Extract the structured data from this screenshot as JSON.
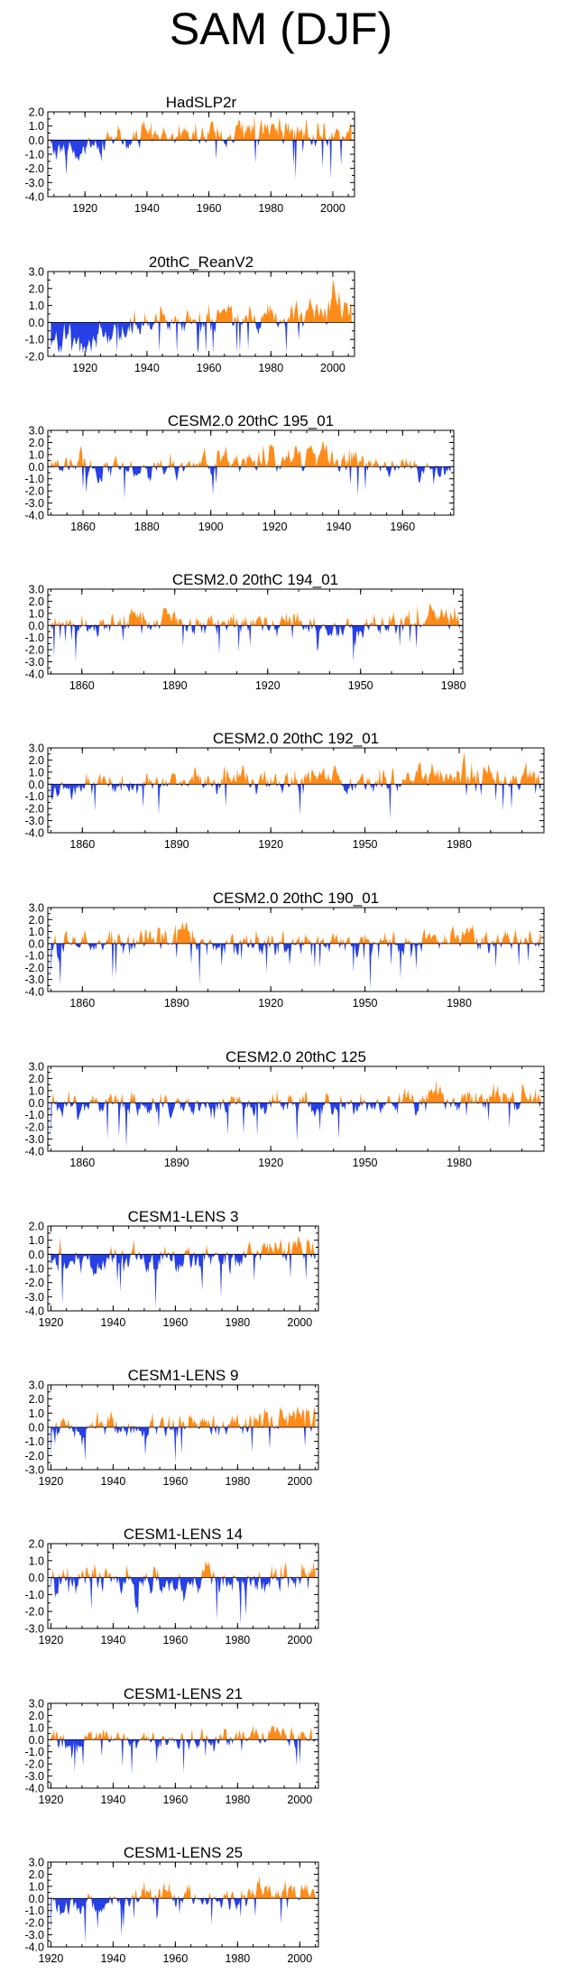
{
  "title": "SAM (DJF)",
  "colors": {
    "positive": "#ff8c1a",
    "negative": "#2640e6",
    "axis": "#000000"
  },
  "chart_data": [
    {
      "type": "area",
      "title": "HadSLP2r",
      "xlim": [
        1908,
        2007
      ],
      "ylim": [
        -4,
        2
      ],
      "yticks": [
        2.0,
        1.0,
        0.0,
        -1.0,
        -2.0,
        -3.0,
        -4.0
      ],
      "ytick_labels": [
        "2.0",
        "1.0",
        "0.0",
        "-1.0",
        "-2.0",
        "-3.0",
        "-4.0"
      ],
      "xticks": [
        1920,
        1940,
        1960,
        1980,
        2000
      ],
      "xtick_labels": [
        "1920",
        "1940",
        "1960",
        "1980",
        "2000"
      ],
      "seed": 11,
      "amp": 0.9,
      "trend": 0.015
    },
    {
      "type": "area",
      "title": "20thC_ReanV2",
      "xlim": [
        1908,
        2007
      ],
      "ylim": [
        -2,
        3
      ],
      "yticks": [
        3.0,
        2.0,
        1.0,
        0.0,
        -1.0,
        -2.0
      ],
      "ytick_labels": [
        "3.0",
        "2.0",
        "1.0",
        "0.0",
        "-1.0",
        "-2.0"
      ],
      "xticks": [
        1920,
        1940,
        1960,
        1980,
        2000
      ],
      "xtick_labels": [
        "1920",
        "1940",
        "1960",
        "1980",
        "2000"
      ],
      "seed": 23,
      "amp": 0.8,
      "trend": 0.02
    },
    {
      "type": "area",
      "title": "CESM2.0 20thC 195_01",
      "xlim": [
        1849,
        1976
      ],
      "ylim": [
        -4,
        3
      ],
      "yticks": [
        3.0,
        2.0,
        1.0,
        0.0,
        -1.0,
        -2.0,
        -3.0,
        -4.0
      ],
      "ytick_labels": [
        "3.0",
        "2.0",
        "1.0",
        "0.0",
        "-1.0",
        "-2.0",
        "-3.0",
        "-4.0"
      ],
      "xticks": [
        1860,
        1880,
        1900,
        1920,
        1940,
        1960
      ],
      "xtick_labels": [
        "1860",
        "1880",
        "1900",
        "1920",
        "1940",
        "1960"
      ],
      "seed": 37,
      "amp": 1.0,
      "trend": 0.0
    },
    {
      "type": "area",
      "title": "CESM2.0 20thC 194_01",
      "xlim": [
        1849,
        1983
      ],
      "ylim": [
        -4,
        3
      ],
      "yticks": [
        3.0,
        2.0,
        1.0,
        0.0,
        -1.0,
        -2.0,
        -3.0,
        -4.0
      ],
      "ytick_labels": [
        "3.0",
        "2.0",
        "1.0",
        "0.0",
        "-1.0",
        "-2.0",
        "-3.0",
        "-4.0"
      ],
      "xticks": [
        1860,
        1890,
        1920,
        1950,
        1980
      ],
      "xtick_labels": [
        "1860",
        "1890",
        "1920",
        "1950",
        "1980"
      ],
      "seed": 41,
      "amp": 1.0,
      "trend": 0.0
    },
    {
      "type": "area",
      "title": "CESM2.0 20thC 192_01",
      "xlim": [
        1849,
        2007
      ],
      "ylim": [
        -4,
        3
      ],
      "yticks": [
        3.0,
        2.0,
        1.0,
        0.0,
        -1.0,
        -2.0,
        -3.0,
        -4.0
      ],
      "ytick_labels": [
        "3.0",
        "2.0",
        "1.0",
        "0.0",
        "-1.0",
        "-2.0",
        "-3.0",
        "-4.0"
      ],
      "xticks": [
        1860,
        1890,
        1920,
        1950,
        1980
      ],
      "xtick_labels": [
        "1860",
        "1890",
        "1920",
        "1950",
        "1980"
      ],
      "seed": 53,
      "amp": 1.0,
      "trend": 0.004
    },
    {
      "type": "area",
      "title": "CESM2.0 20thC 190_01",
      "xlim": [
        1849,
        2007
      ],
      "ylim": [
        -4,
        3
      ],
      "yticks": [
        3.0,
        2.0,
        1.0,
        0.0,
        -1.0,
        -2.0,
        -3.0,
        -4.0
      ],
      "ytick_labels": [
        "3.0",
        "2.0",
        "1.0",
        "0.0",
        "-1.0",
        "-2.0",
        "-3.0",
        "-4.0"
      ],
      "xticks": [
        1860,
        1890,
        1920,
        1950,
        1980
      ],
      "xtick_labels": [
        "1860",
        "1890",
        "1920",
        "1950",
        "1980"
      ],
      "seed": 67,
      "amp": 1.0,
      "trend": 0.004
    },
    {
      "type": "area",
      "title": "CESM2.0 20thC 125",
      "xlim": [
        1849,
        2007
      ],
      "ylim": [
        -4,
        3
      ],
      "yticks": [
        3.0,
        2.0,
        1.0,
        0.0,
        -1.0,
        -2.0,
        -3.0,
        -4.0
      ],
      "ytick_labels": [
        "3.0",
        "2.0",
        "1.0",
        "0.0",
        "-1.0",
        "-2.0",
        "-3.0",
        "-4.0"
      ],
      "xticks": [
        1860,
        1890,
        1920,
        1950,
        1980
      ],
      "xtick_labels": [
        "1860",
        "1890",
        "1920",
        "1950",
        "1980"
      ],
      "seed": 79,
      "amp": 1.0,
      "trend": 0.004
    },
    {
      "type": "area",
      "title": "CESM1-LENS 3",
      "xlim": [
        1919,
        2006
      ],
      "ylim": [
        -4,
        2
      ],
      "yticks": [
        2.0,
        1.0,
        0.0,
        -1.0,
        -2.0,
        -3.0,
        -4.0
      ],
      "ytick_labels": [
        "2.0",
        "1.0",
        "0.0",
        "-1.0",
        "-2.0",
        "-3.0",
        "-4.0"
      ],
      "xticks": [
        1920,
        1940,
        1960,
        1980,
        2000
      ],
      "xtick_labels": [
        "1920",
        "1940",
        "1960",
        "1980",
        "2000"
      ],
      "seed": 83,
      "amp": 0.9,
      "trend": 0.015
    },
    {
      "type": "area",
      "title": "CESM1-LENS 9",
      "xlim": [
        1919,
        2006
      ],
      "ylim": [
        -3,
        3
      ],
      "yticks": [
        3.0,
        2.0,
        1.0,
        0.0,
        -1.0,
        -2.0,
        -3.0
      ],
      "ytick_labels": [
        "3.0",
        "2.0",
        "1.0",
        "0.0",
        "-1.0",
        "-2.0",
        "-3.0"
      ],
      "xticks": [
        1920,
        1940,
        1960,
        1980,
        2000
      ],
      "xtick_labels": [
        "1920",
        "1940",
        "1960",
        "1980",
        "2000"
      ],
      "seed": 97,
      "amp": 0.9,
      "trend": 0.01
    },
    {
      "type": "area",
      "title": "CESM1-LENS 14",
      "xlim": [
        1919,
        2006
      ],
      "ylim": [
        -3,
        2
      ],
      "yticks": [
        2.0,
        1.0,
        0.0,
        -1.0,
        -2.0,
        -3.0
      ],
      "ytick_labels": [
        "2.0",
        "1.0",
        "0.0",
        "-1.0",
        "-2.0",
        "-3.0"
      ],
      "xticks": [
        1920,
        1940,
        1960,
        1980,
        2000
      ],
      "xtick_labels": [
        "1920",
        "1940",
        "1960",
        "1980",
        "2000"
      ],
      "seed": 101,
      "amp": 0.9,
      "trend": 0.012
    },
    {
      "type": "area",
      "title": "CESM1-LENS 21",
      "xlim": [
        1919,
        2006
      ],
      "ylim": [
        -4,
        3
      ],
      "yticks": [
        3.0,
        2.0,
        1.0,
        0.0,
        -1.0,
        -2.0,
        -3.0,
        -4.0
      ],
      "ytick_labels": [
        "3.0",
        "2.0",
        "1.0",
        "0.0",
        "-1.0",
        "-2.0",
        "-3.0",
        "-4.0"
      ],
      "xticks": [
        1920,
        1940,
        1960,
        1980,
        2000
      ],
      "xtick_labels": [
        "1920",
        "1940",
        "1960",
        "1980",
        "2000"
      ],
      "seed": 113,
      "amp": 0.9,
      "trend": 0.01
    },
    {
      "type": "area",
      "title": "CESM1-LENS 25",
      "xlim": [
        1919,
        2006
      ],
      "ylim": [
        -4,
        3
      ],
      "yticks": [
        3.0,
        2.0,
        1.0,
        0.0,
        -1.0,
        -2.0,
        -3.0,
        -4.0
      ],
      "ytick_labels": [
        "3.0",
        "2.0",
        "1.0",
        "0.0",
        "-1.0",
        "-2.0",
        "-3.0",
        "-4.0"
      ],
      "xticks": [
        1920,
        1940,
        1960,
        1980,
        2000
      ],
      "xtick_labels": [
        "1920",
        "1940",
        "1960",
        "1980",
        "2000"
      ],
      "seed": 127,
      "amp": 0.9,
      "trend": 0.015
    }
  ]
}
